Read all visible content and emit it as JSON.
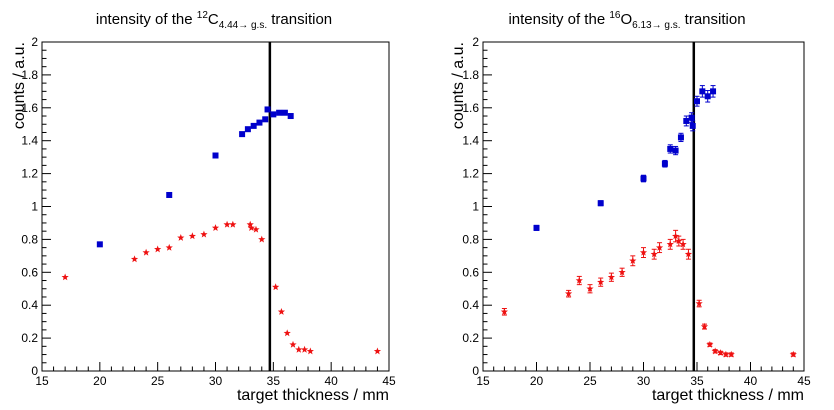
{
  "chart_data": [
    {
      "type": "scatter",
      "title": {
        "pre": "intensity of the ",
        "sup": "12",
        "element": "C",
        "sub": "4.44→ g.s.",
        "post": " transition"
      },
      "xlabel": "target thickness / mm",
      "ylabel": "counts / a.u.",
      "xlim": [
        15,
        45
      ],
      "ylim": [
        0,
        2
      ],
      "x_ticks": [
        "15",
        "20",
        "25",
        "30",
        "35",
        "40",
        "45"
      ],
      "y_ticks": [
        "0",
        "0.2",
        "0.4",
        "0.6",
        "0.8",
        "1",
        "1.2",
        "1.4",
        "1.6",
        "1.8",
        "2"
      ],
      "vertical_line_x": 34.7,
      "grid": false,
      "series": [
        {
          "marker": "square",
          "color": "#0000cc",
          "error_bars": false,
          "x": [
            20,
            26,
            30,
            32.3,
            32.8,
            33.3,
            33.8,
            34.3,
            34.5,
            35,
            35.5,
            36,
            36.5
          ],
          "y": [
            0.77,
            1.07,
            1.31,
            1.44,
            1.47,
            1.49,
            1.51,
            1.53,
            1.59,
            1.56,
            1.57,
            1.57,
            1.55
          ]
        },
        {
          "marker": "star",
          "color": "#ee1111",
          "error_bars": false,
          "x": [
            17,
            23,
            24,
            25,
            26,
            27,
            28,
            29,
            30,
            31,
            31.5,
            33,
            33.1,
            33.5,
            34,
            35.2,
            35.7,
            36.2,
            36.7,
            37.2,
            37.7,
            38.2,
            44
          ],
          "y": [
            0.57,
            0.68,
            0.72,
            0.74,
            0.75,
            0.81,
            0.82,
            0.83,
            0.87,
            0.89,
            0.89,
            0.89,
            0.87,
            0.86,
            0.8,
            0.51,
            0.36,
            0.23,
            0.16,
            0.13,
            0.13,
            0.12,
            0.12
          ]
        }
      ]
    },
    {
      "type": "scatter",
      "title": {
        "pre": "intensity of the ",
        "sup": "16",
        "element": "O",
        "sub": "6.13→ g.s.",
        "post": " transition"
      },
      "xlabel": "target thickness / mm",
      "ylabel": "counts / a.u.",
      "xlim": [
        15,
        45
      ],
      "ylim": [
        0,
        2
      ],
      "x_ticks": [
        "15",
        "20",
        "25",
        "30",
        "35",
        "40",
        "45"
      ],
      "y_ticks": [
        "0",
        "0.2",
        "0.4",
        "0.6",
        "0.8",
        "1",
        "1.2",
        "1.4",
        "1.6",
        "1.8",
        "2"
      ],
      "vertical_line_x": 34.7,
      "grid": false,
      "series": [
        {
          "marker": "square",
          "color": "#0000cc",
          "error_bars": true,
          "x": [
            20,
            26,
            30,
            32,
            32.5,
            33,
            33.5,
            34,
            34.5,
            34.6,
            35,
            35.5,
            36,
            36.5
          ],
          "y": [
            0.87,
            1.02,
            1.17,
            1.26,
            1.35,
            1.34,
            1.42,
            1.52,
            1.54,
            1.49,
            1.64,
            1.7,
            1.67,
            1.7
          ],
          "err": [
            0.015,
            0.015,
            0.02,
            0.02,
            0.025,
            0.025,
            0.025,
            0.03,
            0.03,
            0.03,
            0.03,
            0.035,
            0.035,
            0.035
          ]
        },
        {
          "marker": "star",
          "color": "#ee1111",
          "error_bars": true,
          "x": [
            17,
            23,
            24,
            25,
            26,
            27,
            28,
            29,
            30,
            31,
            31.5,
            32.5,
            33,
            33.3,
            33.7,
            34.2,
            35.2,
            35.7,
            36.2,
            36.7,
            37.2,
            37.7,
            38.2,
            44
          ],
          "y": [
            0.36,
            0.47,
            0.55,
            0.5,
            0.54,
            0.57,
            0.6,
            0.67,
            0.72,
            0.71,
            0.75,
            0.77,
            0.82,
            0.79,
            0.77,
            0.71,
            0.41,
            0.27,
            0.16,
            0.12,
            0.11,
            0.1,
            0.1,
            0.1
          ],
          "err": [
            0.02,
            0.02,
            0.025,
            0.025,
            0.025,
            0.025,
            0.025,
            0.03,
            0.03,
            0.03,
            0.03,
            0.03,
            0.035,
            0.03,
            0.03,
            0.03,
            0.02,
            0.015,
            0.01,
            0.01,
            0.01,
            0.01,
            0.01,
            0.01
          ]
        }
      ]
    }
  ]
}
